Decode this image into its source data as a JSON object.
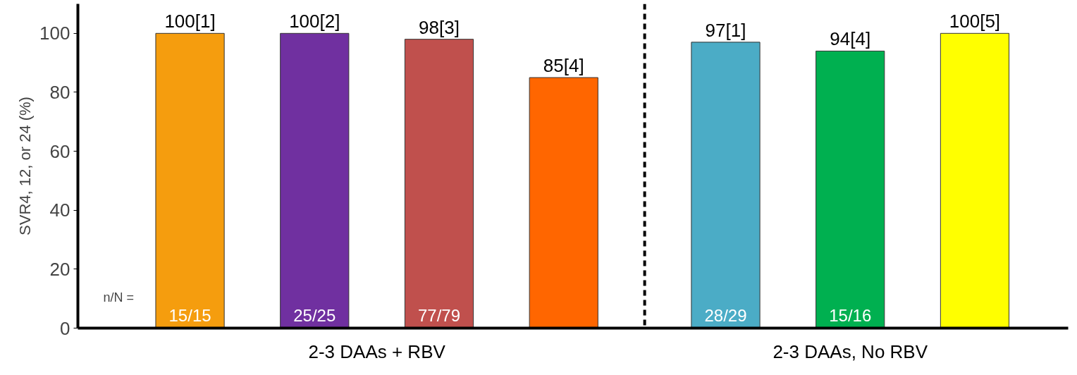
{
  "chart_data": {
    "type": "bar",
    "ylabel": "SVR4, 12, or 24 (%)",
    "categories": [
      null,
      null,
      null,
      null,
      null,
      null,
      null
    ],
    "values": [
      100,
      100,
      98,
      85,
      97,
      94,
      100
    ],
    "colors": [
      "#f59d0e",
      "#7030a0",
      "#c0504d",
      "#ff6600",
      "#4bacc6",
      "#00b050",
      "#ffff00"
    ],
    "value_labels": [
      "100[1]",
      "100[2]",
      "98[3]",
      "85[4]",
      "97[1]",
      "94[4]",
      "100[5]"
    ],
    "ylim": [
      0,
      110
    ],
    "yticks": [
      0,
      20,
      40,
      60,
      80,
      100
    ],
    "grid": false,
    "annotations": [
      "n/N =",
      "15/15",
      "25/25",
      "77/79",
      "28/29",
      "15/16",
      "2-3 DAAs + RBV",
      "2-3 DAAs, No RBV"
    ]
  }
}
